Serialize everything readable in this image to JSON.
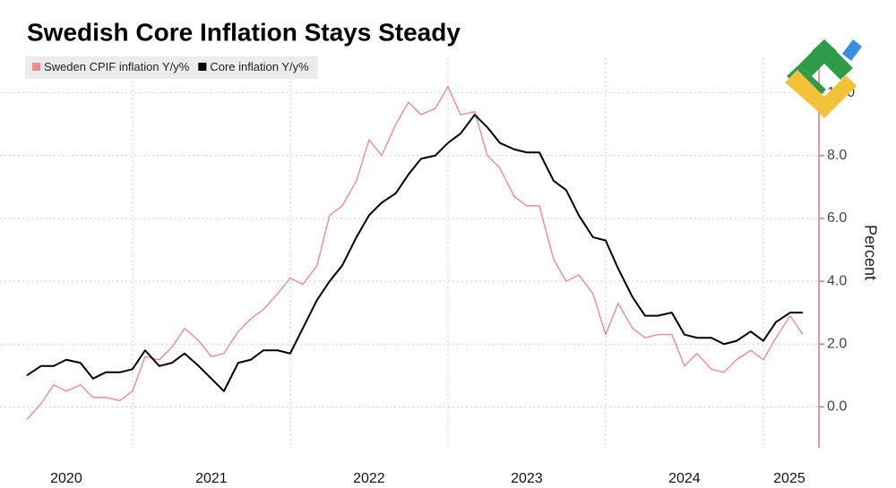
{
  "chart_data": {
    "type": "line",
    "title": "Swedish Core Inflation Stays Steady",
    "y_label": "Percent",
    "x": [
      2020.33,
      2020.42,
      2020.5,
      2020.58,
      2020.67,
      2020.75,
      2020.83,
      2020.92,
      2021,
      2021.08,
      2021.17,
      2021.25,
      2021.33,
      2021.42,
      2021.5,
      2021.58,
      2021.67,
      2021.75,
      2021.83,
      2021.92,
      2022,
      2022.08,
      2022.17,
      2022.25,
      2022.33,
      2022.42,
      2022.5,
      2022.58,
      2022.67,
      2022.75,
      2022.83,
      2022.92,
      2023,
      2023.08,
      2023.17,
      2023.25,
      2023.33,
      2023.42,
      2023.5,
      2023.58,
      2023.67,
      2023.75,
      2023.83,
      2023.92,
      2024,
      2024.08,
      2024.17,
      2024.25,
      2024.33,
      2024.42,
      2024.5,
      2024.58,
      2024.67,
      2024.75,
      2024.83,
      2024.92,
      2025,
      2025.08,
      2025.17,
      2025.25
    ],
    "series": [
      {
        "name": "Sweden CPIF inflation Y/y%",
        "color": "#f08a8f",
        "values": [
          -0.4,
          0.1,
          0.7,
          0.5,
          0.7,
          0.3,
          0.3,
          0.2,
          0.5,
          1.6,
          1.5,
          1.9,
          2.5,
          2.1,
          1.6,
          1.7,
          2.4,
          2.8,
          3.1,
          3.6,
          4.1,
          3.9,
          4.5,
          6.1,
          6.4,
          7.2,
          8.5,
          8.0,
          9.0,
          9.7,
          9.3,
          9.5,
          10.2,
          9.3,
          9.4,
          8.0,
          7.6,
          6.7,
          6.4,
          6.4,
          4.7,
          4.0,
          4.2,
          3.6,
          2.3,
          3.3,
          2.5,
          2.2,
          2.3,
          2.3,
          1.3,
          1.7,
          1.2,
          1.1,
          1.5,
          1.8,
          1.5,
          2.2,
          2.9,
          2.3
        ]
      },
      {
        "name": "Core inflation Y/y%",
        "color": "#000000",
        "values": [
          1.0,
          1.3,
          1.3,
          1.5,
          1.4,
          0.9,
          1.1,
          1.1,
          1.2,
          1.8,
          1.3,
          1.4,
          1.7,
          1.3,
          0.9,
          0.5,
          1.4,
          1.5,
          1.8,
          1.8,
          1.7,
          2.5,
          3.4,
          4.0,
          4.5,
          5.4,
          6.1,
          6.5,
          6.8,
          7.4,
          7.9,
          8.0,
          8.4,
          8.7,
          9.3,
          8.9,
          8.4,
          8.2,
          8.1,
          8.1,
          7.2,
          6.9,
          6.1,
          5.4,
          5.3,
          4.4,
          3.5,
          2.9,
          2.9,
          3.0,
          2.3,
          2.2,
          2.2,
          2.0,
          2.1,
          2.4,
          2.1,
          2.7,
          3.0,
          3.0
        ]
      }
    ],
    "xlim": [
      2020.16,
      2025.33
    ],
    "xticks": [
      2020,
      2021,
      2022,
      2023,
      2024,
      2025
    ],
    "ylim": [
      -1.3,
      11.1
    ],
    "yticks": [
      {
        "value": 0,
        "label": "0.0"
      },
      {
        "value": 2,
        "label": "2.0"
      },
      {
        "value": 4,
        "label": "4.0"
      },
      {
        "value": 6,
        "label": "6.0"
      },
      {
        "value": 8,
        "label": "8.0"
      },
      {
        "value": 10,
        "label": "10.0"
      }
    ],
    "y_axis_side": "right",
    "axis_color": "#e3757c",
    "grid": true,
    "legend": "top-left"
  }
}
